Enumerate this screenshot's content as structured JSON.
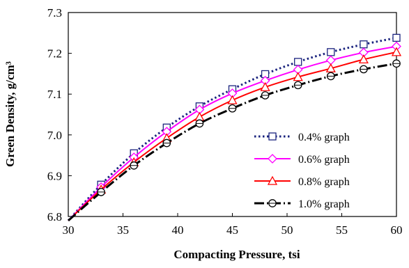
{
  "chart_data": {
    "type": "line",
    "title": "",
    "xlabel": "Compacting Pressure, tsi",
    "ylabel": "Green Density, g/cm³",
    "xlim": [
      30,
      60
    ],
    "ylim": [
      6.8,
      7.3
    ],
    "xticks": [
      30,
      35,
      40,
      45,
      50,
      55,
      60
    ],
    "yticks": [
      6.8,
      6.9,
      7.0,
      7.1,
      7.2,
      7.3
    ],
    "ytick_labels": [
      "6.8",
      "6.9",
      "7.0",
      "7.1",
      "7.2",
      "7.3"
    ],
    "grid": false,
    "legend_position": "lower-right",
    "series": [
      {
        "name": "0.4% graph",
        "color": "#1a237e",
        "line_style": "dotted",
        "marker": "square",
        "x": [
          30,
          33,
          36,
          39,
          42,
          45,
          48,
          51,
          54,
          57,
          60
        ],
        "y": [
          6.79,
          6.878,
          6.955,
          7.018,
          7.07,
          7.112,
          7.149,
          7.179,
          7.203,
          7.222,
          7.238
        ]
      },
      {
        "name": "0.6% graph",
        "color": "#ff00ff",
        "line_style": "solid",
        "marker": "diamond",
        "x": [
          30,
          33,
          36,
          39,
          42,
          45,
          48,
          51,
          54,
          57,
          60
        ],
        "y": [
          6.79,
          6.872,
          6.945,
          7.008,
          7.062,
          7.102,
          7.133,
          7.16,
          7.183,
          7.202,
          7.217
        ]
      },
      {
        "name": "0.8% graph",
        "color": "#ff0000",
        "line_style": "solid",
        "marker": "triangle",
        "x": [
          30,
          33,
          36,
          39,
          42,
          45,
          48,
          51,
          54,
          57,
          60
        ],
        "y": [
          6.79,
          6.866,
          6.933,
          6.992,
          7.044,
          7.085,
          7.117,
          7.142,
          7.163,
          7.185,
          7.203
        ]
      },
      {
        "name": "1.0% graph",
        "color": "#000000",
        "line_style": "dashdot",
        "marker": "circle",
        "x": [
          30,
          33,
          36,
          39,
          42,
          45,
          48,
          51,
          54,
          57,
          60
        ],
        "y": [
          6.79,
          6.86,
          6.925,
          6.98,
          7.028,
          7.065,
          7.097,
          7.122,
          7.144,
          7.161,
          7.175
        ]
      }
    ]
  }
}
